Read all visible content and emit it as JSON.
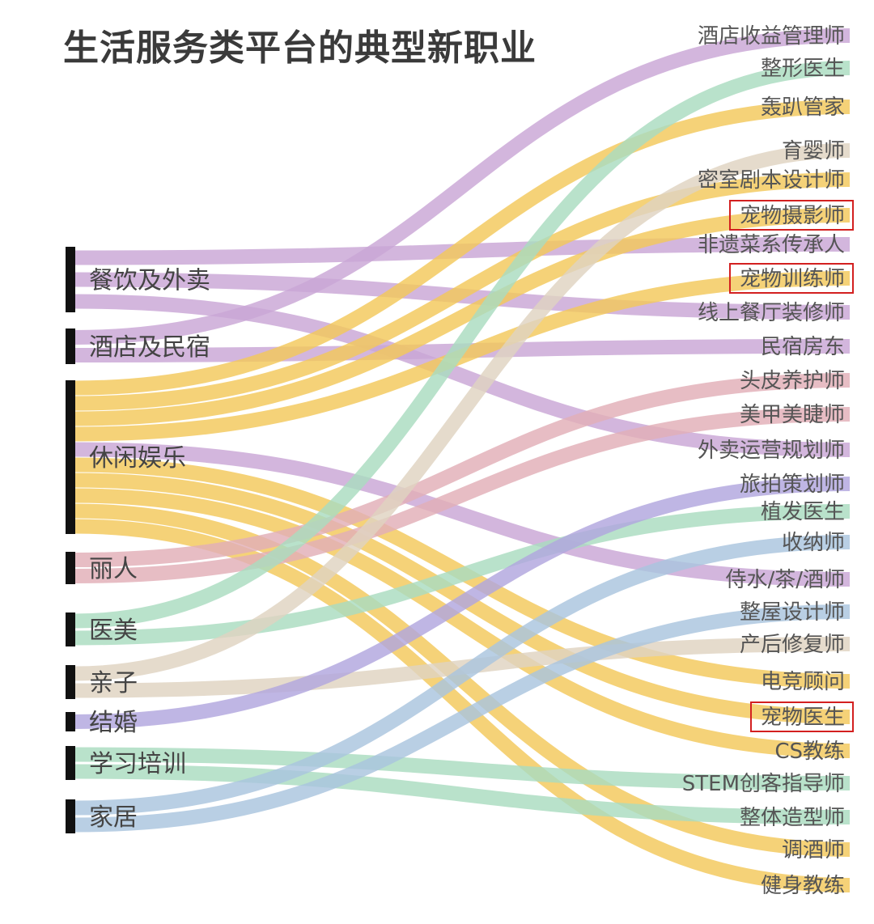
{
  "title": "生活服务类平台的典型新职业",
  "colors": {
    "purple": "#c9a6d6",
    "yellow": "#f3c85a",
    "green": "#a9dcc0",
    "pink": "#e2afb7",
    "beige": "#dfd3c1",
    "violet": "#b1a6de",
    "blue": "#a9c5de",
    "highlight": "#d32020",
    "bar": "#111111"
  },
  "sources": [
    {
      "label": "餐饮及外卖"
    },
    {
      "label": "酒店及民宿"
    },
    {
      "label": "休闲娱乐"
    },
    {
      "label": "丽人"
    },
    {
      "label": "医美"
    },
    {
      "label": "亲子"
    },
    {
      "label": "结婚"
    },
    {
      "label": "学习培训"
    },
    {
      "label": "家居"
    }
  ],
  "targets": [
    {
      "label": "酒店收益管理师"
    },
    {
      "label": "整形医生"
    },
    {
      "label": "轰趴管家"
    },
    {
      "label": "育婴师"
    },
    {
      "label": "密室剧本设计师"
    },
    {
      "label": "宠物摄影师",
      "highlight": true
    },
    {
      "label": "非遗菜系传承人"
    },
    {
      "label": "宠物训练师",
      "highlight": true
    },
    {
      "label": "线上餐厅装修师"
    },
    {
      "label": "民宿房东"
    },
    {
      "label": "头皮养护师"
    },
    {
      "label": "美甲美睫师"
    },
    {
      "label": "外卖运营规划师"
    },
    {
      "label": "旅拍策划师"
    },
    {
      "label": "植发医生"
    },
    {
      "label": "收纳师"
    },
    {
      "label": "侍水/茶/酒师"
    },
    {
      "label": "整屋设计师"
    },
    {
      "label": "产后修复师"
    },
    {
      "label": "电竞顾问"
    },
    {
      "label": "宠物医生",
      "highlight": true
    },
    {
      "label": "CS教练"
    },
    {
      "label": "STEM创客指导师"
    },
    {
      "label": "整体造型师"
    },
    {
      "label": "调酒师"
    },
    {
      "label": "健身教练"
    }
  ],
  "links": [
    {
      "source": 0,
      "target": 6,
      "color": "purple"
    },
    {
      "source": 0,
      "target": 8,
      "color": "purple"
    },
    {
      "source": 0,
      "target": 12,
      "color": "purple"
    },
    {
      "source": 1,
      "target": 0,
      "color": "purple"
    },
    {
      "source": 1,
      "target": 9,
      "color": "purple"
    },
    {
      "source": 2,
      "target": 2,
      "color": "yellow"
    },
    {
      "source": 2,
      "target": 4,
      "color": "yellow"
    },
    {
      "source": 2,
      "target": 5,
      "color": "yellow"
    },
    {
      "source": 2,
      "target": 7,
      "color": "yellow"
    },
    {
      "source": 2,
      "target": 16,
      "color": "purple"
    },
    {
      "source": 2,
      "target": 19,
      "color": "yellow"
    },
    {
      "source": 2,
      "target": 20,
      "color": "yellow"
    },
    {
      "source": 2,
      "target": 21,
      "color": "yellow"
    },
    {
      "source": 2,
      "target": 24,
      "color": "yellow"
    },
    {
      "source": 2,
      "target": 25,
      "color": "yellow"
    },
    {
      "source": 3,
      "target": 10,
      "color": "pink"
    },
    {
      "source": 3,
      "target": 11,
      "color": "pink"
    },
    {
      "source": 4,
      "target": 1,
      "color": "green"
    },
    {
      "source": 4,
      "target": 14,
      "color": "green"
    },
    {
      "source": 5,
      "target": 3,
      "color": "beige"
    },
    {
      "source": 5,
      "target": 18,
      "color": "beige"
    },
    {
      "source": 6,
      "target": 13,
      "color": "violet"
    },
    {
      "source": 7,
      "target": 22,
      "color": "green"
    },
    {
      "source": 7,
      "target": 23,
      "color": "green"
    },
    {
      "source": 8,
      "target": 15,
      "color": "blue"
    },
    {
      "source": 8,
      "target": 17,
      "color": "blue"
    }
  ]
}
